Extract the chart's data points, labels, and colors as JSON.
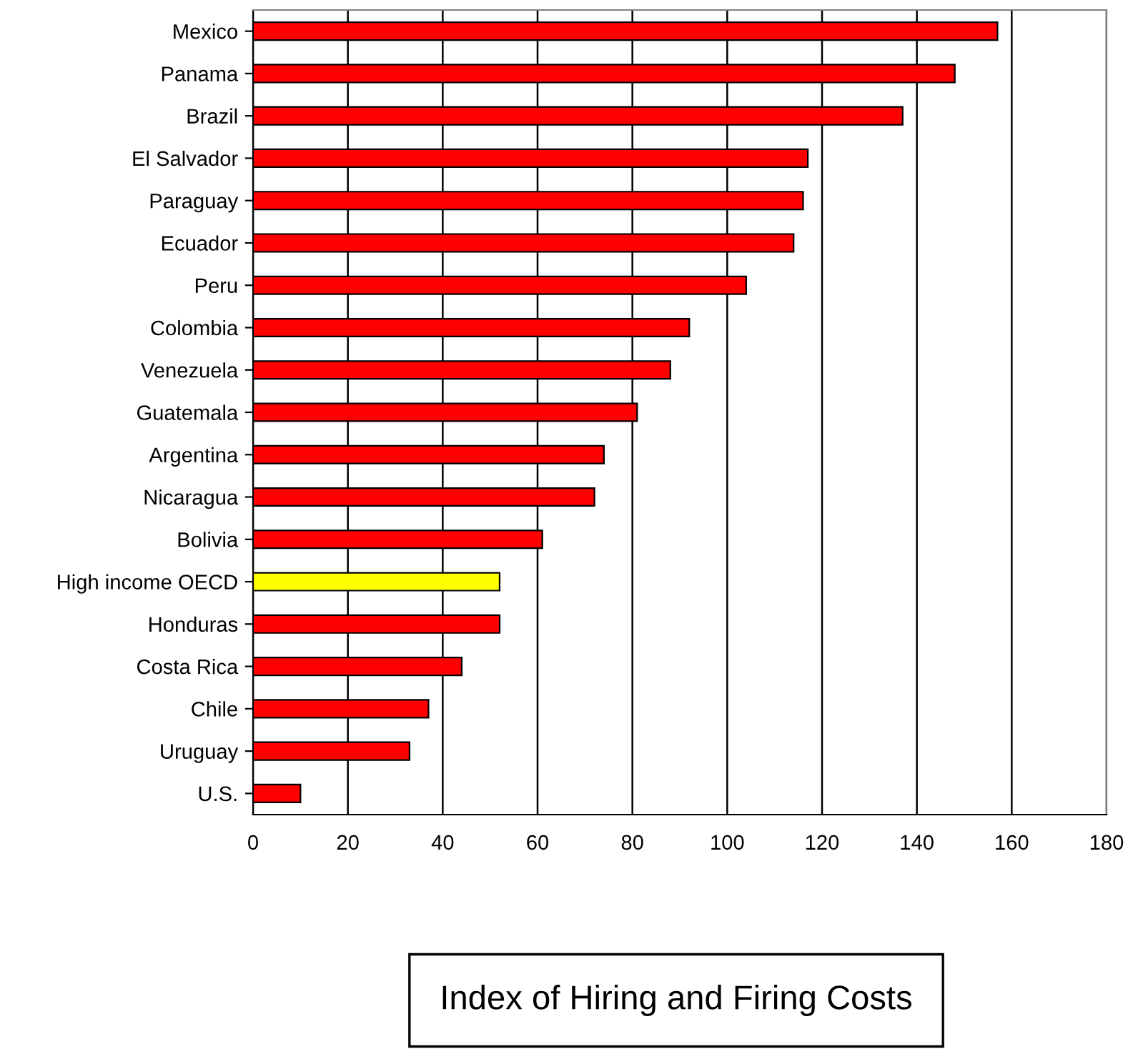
{
  "chart_data": {
    "type": "bar",
    "orientation": "horizontal",
    "xlabel": "Index of Hiring and Firing Costs",
    "categories": [
      "Mexico",
      "Panama",
      "Brazil",
      "El Salvador",
      "Paraguay",
      "Ecuador",
      "Peru",
      "Colombia",
      "Venezuela",
      "Guatemala",
      "Argentina",
      "Nicaragua",
      "Bolivia",
      "High income OECD",
      "Honduras",
      "Costa Rica",
      "Chile",
      "Uruguay",
      "U.S."
    ],
    "values": [
      157,
      148,
      137,
      117,
      116,
      114,
      104,
      92,
      88,
      81,
      74,
      72,
      61,
      52,
      52,
      44,
      37,
      33,
      10
    ],
    "colors": [
      "#ff0000",
      "#ff0000",
      "#ff0000",
      "#ff0000",
      "#ff0000",
      "#ff0000",
      "#ff0000",
      "#ff0000",
      "#ff0000",
      "#ff0000",
      "#ff0000",
      "#ff0000",
      "#ff0000",
      "#ffff00",
      "#ff0000",
      "#ff0000",
      "#ff0000",
      "#ff0000",
      "#ff0000"
    ],
    "xlim": [
      0,
      180
    ],
    "xticks": [
      0,
      20,
      40,
      60,
      80,
      100,
      120,
      140,
      160,
      180
    ],
    "grid": "x",
    "legend": false
  }
}
